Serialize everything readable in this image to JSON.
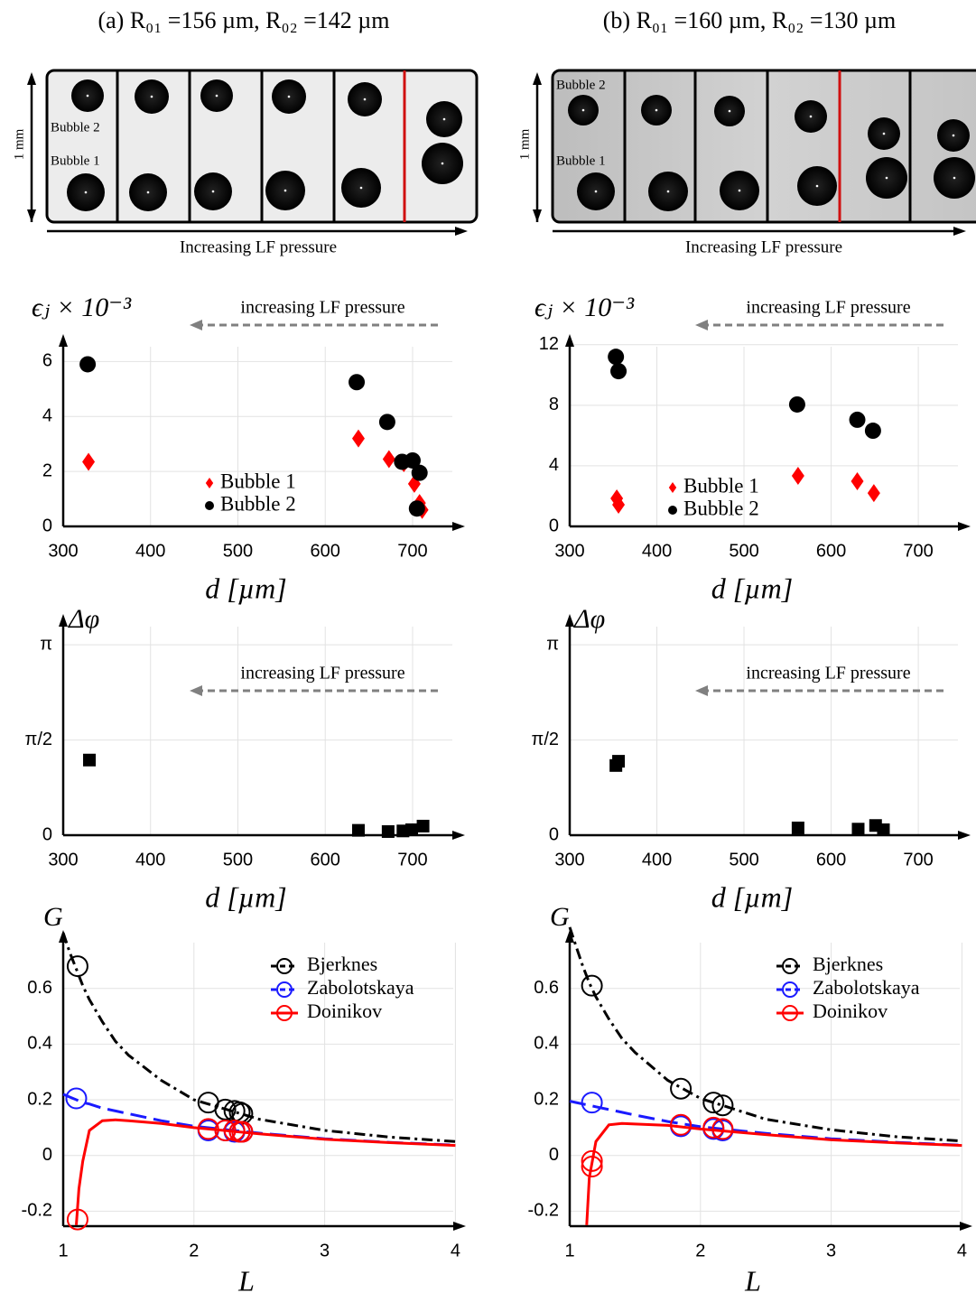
{
  "panels": [
    {
      "title": "(a) R₀₁ =156 µm, R₀₂ =142 µm",
      "strip": {
        "labels": [
          "Bubble 2",
          "Bubble 1"
        ],
        "scale": "1 mm",
        "arrow": "Increasing LF pressure"
      }
    },
    {
      "title": "(b) R₀₁ =160 µm, R₀₂ =130 µm",
      "strip": {
        "labels": [
          "Bubble 2",
          "Bubble 1"
        ],
        "scale": "1 mm",
        "arrow": "Increasing LF pressure"
      }
    }
  ],
  "chart_data": [
    {
      "type": "scatter",
      "ylabel": "ϵⱼ × 10⁻³",
      "xlabel": "d [µm]",
      "annotation": "increasing LF pressure",
      "xlim": [
        300,
        760
      ],
      "ylim": [
        0,
        7
      ],
      "xticks": [
        300,
        400,
        500,
        600,
        700
      ],
      "yticks": [
        0,
        2,
        4,
        6
      ],
      "grid": true,
      "legend": "lower center",
      "series": [
        {
          "name": "Bubble 1",
          "color": "#ff0000",
          "marker": "diamond",
          "x": [
            329,
            638,
            673,
            690,
            702,
            708,
            711
          ],
          "values": [
            2.35,
            3.2,
            2.45,
            2.3,
            1.55,
            0.85,
            0.6
          ]
        },
        {
          "name": "Bubble 2",
          "color": "#000000",
          "marker": "circle",
          "x": [
            328,
            636,
            671,
            688,
            700,
            708,
            705
          ],
          "values": [
            5.9,
            5.25,
            3.8,
            2.35,
            2.4,
            1.95,
            0.65
          ]
        }
      ]
    },
    {
      "type": "scatter",
      "ylabel": "ϵⱼ × 10⁻³",
      "xlabel": "d [µm]",
      "annotation": "increasing LF pressure",
      "xlim": [
        300,
        760
      ],
      "ylim": [
        0,
        12.7
      ],
      "xticks": [
        300,
        400,
        500,
        600,
        700
      ],
      "yticks": [
        0,
        4,
        8,
        12
      ],
      "grid": true,
      "legend": "lower center",
      "series": [
        {
          "name": "Bubble 1",
          "color": "#ff0000",
          "marker": "diamond",
          "x": [
            354,
            356,
            562,
            630,
            649
          ],
          "values": [
            1.85,
            1.43,
            3.34,
            2.98,
            2.2
          ]
        },
        {
          "name": "Bubble 2",
          "color": "#000000",
          "marker": "circle",
          "x": [
            353,
            356,
            561,
            630,
            648
          ],
          "values": [
            11.2,
            10.25,
            8.05,
            7.04,
            6.32
          ]
        }
      ]
    },
    {
      "type": "scatter",
      "ylabel": "Δφ",
      "xlabel": "d [µm]",
      "annotation": "increasing LF pressure",
      "xlim": [
        300,
        760
      ],
      "ylim": [
        0,
        3.65
      ],
      "xticks": [
        300,
        400,
        500,
        600,
        700
      ],
      "yticks": [
        0,
        {
          "value": 1.5708,
          "label": "π/2"
        },
        {
          "value": 3.1416,
          "label": "π"
        }
      ],
      "grid": true,
      "series": [
        {
          "color": "#000000",
          "marker": "square",
          "x": [
            330,
            638,
            672,
            689,
            699,
            712
          ],
          "values": [
            1.24,
            0.08,
            0.06,
            0.07,
            0.09,
            0.15
          ]
        }
      ]
    },
    {
      "type": "scatter",
      "ylabel": "Δφ",
      "xlabel": "d [µm]",
      "annotation": "increasing LF pressure",
      "xlim": [
        300,
        760
      ],
      "ylim": [
        0,
        3.65
      ],
      "xticks": [
        300,
        400,
        500,
        600,
        700
      ],
      "yticks": [
        0,
        {
          "value": 1.5708,
          "label": "π/2"
        },
        {
          "value": 3.1416,
          "label": "π"
        }
      ],
      "grid": true,
      "series": [
        {
          "color": "#000000",
          "marker": "square",
          "x": [
            353,
            356,
            562,
            631,
            651,
            660
          ],
          "values": [
            1.15,
            1.22,
            0.12,
            0.1,
            0.16,
            0.09
          ]
        }
      ]
    },
    {
      "type": "line",
      "ylabel": "G",
      "xlabel": "L",
      "xlim": [
        1,
        4.08
      ],
      "ylim": [
        -0.254,
        0.81
      ],
      "xticks": [
        1,
        2,
        3,
        4
      ],
      "yticks": [
        -0.2,
        0,
        0.2,
        0.4,
        0.6
      ],
      "grid": true,
      "legend": "upper right",
      "series": [
        {
          "name": "Bjerknes",
          "color": "#000000",
          "dash": "dash-dot",
          "x": [
            1,
            1.05,
            1.1,
            1.15,
            1.2,
            1.3,
            1.4,
            1.5,
            1.75,
            2,
            2.5,
            3,
            3.5,
            4
          ],
          "values": [
            0.8,
            0.73,
            0.67,
            0.61,
            0.56,
            0.48,
            0.41,
            0.36,
            0.27,
            0.2,
            0.13,
            0.09,
            0.066,
            0.05
          ],
          "marker_x": [
            1.11,
            2.11,
            2.24,
            2.31,
            2.35,
            2.37
          ],
          "marker_values": [
            0.68,
            0.19,
            0.165,
            0.16,
            0.155,
            0.15
          ]
        },
        {
          "name": "Zabolotskaya",
          "color": "#1a1aff",
          "dash": "dashed",
          "x": [
            1,
            1.05,
            1.1,
            1.15,
            1.2,
            1.3,
            1.4,
            1.5,
            1.75,
            2,
            2.5,
            3,
            3.5,
            4
          ],
          "values": [
            0.22,
            0.21,
            0.2,
            0.19,
            0.185,
            0.17,
            0.16,
            0.15,
            0.125,
            0.105,
            0.08,
            0.06,
            0.047,
            0.037
          ],
          "marker_x": [
            1.1,
            2.11,
            2.24,
            2.31,
            2.35,
            2.37
          ],
          "marker_values": [
            0.205,
            0.09,
            0.09,
            0.085,
            0.085,
            0.085
          ]
        },
        {
          "name": "Doinikov",
          "color": "#ff0000",
          "dash": "solid",
          "x": [
            1.1,
            1.12,
            1.15,
            1.2,
            1.3,
            1.4,
            1.5,
            1.75,
            2,
            2.5,
            3,
            3.5,
            4
          ],
          "values": [
            -0.25,
            -0.12,
            -0.02,
            0.09,
            0.125,
            0.128,
            0.125,
            0.115,
            0.1,
            0.078,
            0.058,
            0.046,
            0.036
          ],
          "marker_x": [
            1.11,
            2.11,
            2.24,
            2.31,
            2.35,
            2.37
          ],
          "marker_values": [
            -0.23,
            0.095,
            0.09,
            0.09,
            0.085,
            0.085
          ]
        }
      ]
    },
    {
      "type": "line",
      "ylabel": "G",
      "xlabel": "L",
      "xlim": [
        1,
        4.08
      ],
      "ylim": [
        -0.254,
        0.81
      ],
      "xticks": [
        1,
        2,
        3,
        4
      ],
      "yticks": [
        -0.2,
        0,
        0.2,
        0.4,
        0.6
      ],
      "grid": true,
      "legend": "upper right",
      "series": [
        {
          "name": "Bjerknes",
          "color": "#000000",
          "dash": "dash-dot",
          "x": [
            1,
            1.05,
            1.1,
            1.15,
            1.2,
            1.3,
            1.4,
            1.5,
            1.75,
            2,
            2.5,
            3,
            3.5,
            4
          ],
          "values": [
            0.82,
            0.75,
            0.68,
            0.62,
            0.57,
            0.49,
            0.42,
            0.37,
            0.27,
            0.205,
            0.13,
            0.092,
            0.067,
            0.052
          ],
          "marker_x": [
            1.17,
            1.85,
            2.1,
            2.17
          ],
          "marker_values": [
            0.61,
            0.24,
            0.19,
            0.18
          ]
        },
        {
          "name": "Zabolotskaya",
          "color": "#1a1aff",
          "dash": "dashed",
          "x": [
            1,
            1.05,
            1.1,
            1.15,
            1.2,
            1.3,
            1.4,
            1.5,
            1.75,
            2,
            2.5,
            3,
            3.5,
            4
          ],
          "values": [
            0.195,
            0.19,
            0.185,
            0.18,
            0.175,
            0.165,
            0.155,
            0.145,
            0.122,
            0.103,
            0.079,
            0.06,
            0.047,
            0.037
          ],
          "marker_x": [
            1.17,
            1.85,
            2.1,
            2.17
          ],
          "marker_values": [
            0.19,
            0.105,
            0.095,
            0.09
          ]
        },
        {
          "name": "Doinikov",
          "color": "#ff0000",
          "dash": "solid",
          "x": [
            1.13,
            1.15,
            1.2,
            1.3,
            1.4,
            1.5,
            1.75,
            2,
            2.5,
            3,
            3.5,
            4
          ],
          "values": [
            -0.25,
            -0.08,
            0.05,
            0.11,
            0.115,
            0.113,
            0.108,
            0.095,
            0.075,
            0.056,
            0.045,
            0.036
          ],
          "marker_x": [
            1.17,
            1.17,
            1.85,
            2.1,
            2.17
          ],
          "marker_values": [
            -0.02,
            -0.04,
            0.11,
            0.1,
            0.095
          ]
        }
      ]
    }
  ]
}
